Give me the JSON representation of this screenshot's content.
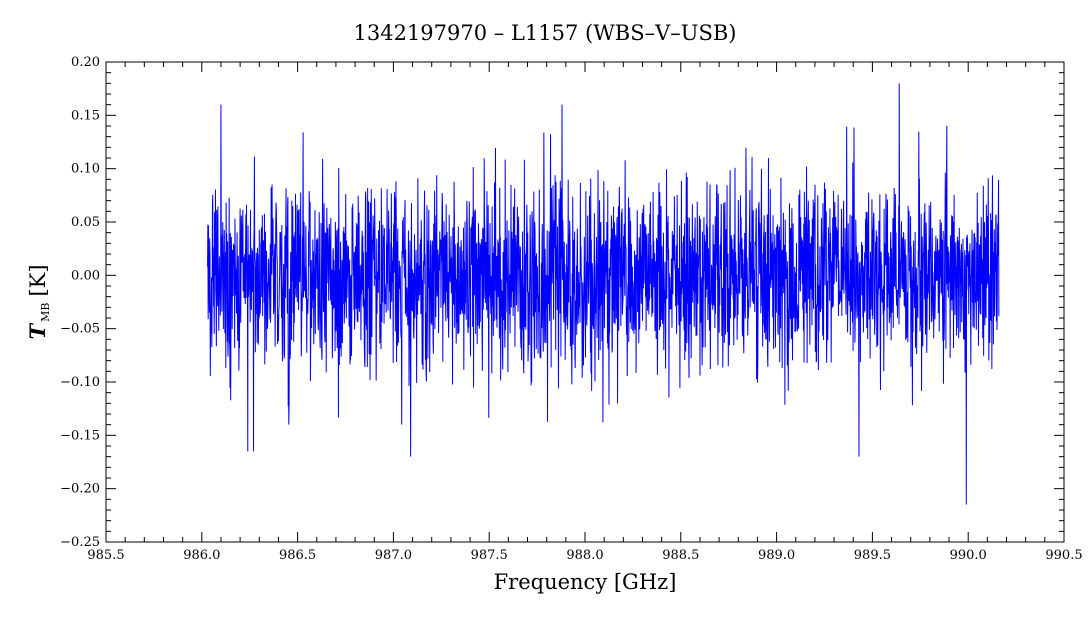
{
  "chart_data": {
    "type": "line",
    "title": "1342197970 – L1157 (WBS–V–USB)",
    "xlabel": "Frequency [GHz]",
    "ylabel": {
      "symbol": "T",
      "subscript": "MB",
      "unit": "[K]"
    },
    "xlim": [
      985.5,
      990.5
    ],
    "ylim": [
      -0.25,
      0.2
    ],
    "x_ticks": [
      985.5,
      986.0,
      986.5,
      987.0,
      987.5,
      988.0,
      988.5,
      989.0,
      989.5,
      990.0,
      990.5
    ],
    "x_tick_labels": [
      "985.5",
      "986.0",
      "986.5",
      "987.0",
      "987.5",
      "988.0",
      "988.5",
      "989.0",
      "989.5",
      "990.0",
      "990.5"
    ],
    "y_ticks": [
      -0.25,
      -0.2,
      -0.15,
      -0.1,
      -0.05,
      0.0,
      0.05,
      0.1,
      0.15,
      0.2
    ],
    "y_tick_labels": [
      "−0.25",
      "−0.20",
      "−0.15",
      "−0.10",
      "−0.05",
      "0.00",
      "0.05",
      "0.10",
      "0.15",
      "0.20"
    ],
    "grid": false,
    "series": [
      {
        "color": "#0000ff",
        "x_range": [
          986.03,
          990.16
        ],
        "baseline": 0.0,
        "noise_rms": 0.045,
        "notable_points": [
          {
            "x": 986.1,
            "y": 0.16
          },
          {
            "x": 986.24,
            "y": -0.165
          },
          {
            "x": 986.27,
            "y": -0.165
          },
          {
            "x": 987.09,
            "y": -0.17
          },
          {
            "x": 987.88,
            "y": 0.16
          },
          {
            "x": 988.17,
            "y": -0.12
          },
          {
            "x": 989.43,
            "y": -0.17
          },
          {
            "x": 989.64,
            "y": 0.18
          },
          {
            "x": 989.99,
            "y": -0.215
          }
        ]
      }
    ]
  }
}
